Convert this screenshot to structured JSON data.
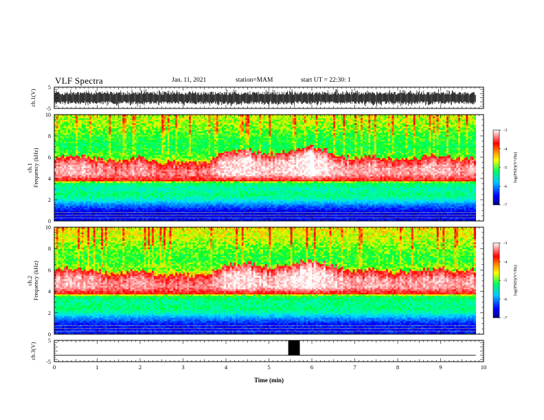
{
  "header": {
    "title": "VLF Spectra",
    "date": "Jan. 11, 2021",
    "station": "station=MAM",
    "start_ut": "start UT =  22:30: 1"
  },
  "chart_data": [
    {
      "type": "line",
      "panel": "ch1-waveform",
      "ylabel": "ch.1(V)",
      "ylim": [
        -5,
        5
      ],
      "yticks": [
        "5",
        "-5"
      ],
      "xlim": [
        0,
        10
      ],
      "description_series": "dense broadband waveform spanning approx -3 to +3 V across full time range"
    },
    {
      "type": "heatmap",
      "panel": "ch1-spectrogram",
      "ylabel": "ch.1\nFrequency (kHz)",
      "ylabel_line1": "ch.1",
      "ylabel_line2": "Frequency (kHz)",
      "ylim": [
        0,
        10
      ],
      "yticks": [
        "0",
        "2",
        "4",
        "6",
        "8",
        "10"
      ],
      "xlim": [
        0,
        10
      ],
      "data_end_min": 9.82,
      "colorbar": {
        "label": "log(PSD)(V²/Hz)",
        "range": [
          -7,
          -3
        ],
        "ticks": [
          "-3",
          "-4",
          "-5",
          "-6",
          "-7"
        ]
      },
      "band_profile_khz_logpsd": [
        [
          0.0,
          -6.4
        ],
        [
          0.5,
          -6.6
        ],
        [
          1.0,
          -6.5
        ],
        [
          1.5,
          -6.0
        ],
        [
          2.0,
          -5.3
        ],
        [
          2.5,
          -5.0
        ],
        [
          3.0,
          -5.2
        ],
        [
          3.5,
          -5.0
        ],
        [
          4.0,
          -3.9
        ],
        [
          4.5,
          -3.8
        ],
        [
          5.0,
          -4.0
        ],
        [
          5.5,
          -4.4
        ],
        [
          6.0,
          -4.7
        ],
        [
          7.0,
          -4.9
        ],
        [
          8.0,
          -4.8
        ],
        [
          9.0,
          -4.6
        ],
        [
          10.0,
          -4.5
        ]
      ],
      "peak_upper_khz_by_min": [
        [
          0.0,
          6.0
        ],
        [
          0.5,
          6.3
        ],
        [
          1.0,
          5.8
        ],
        [
          1.5,
          5.7
        ],
        [
          2.0,
          6.0
        ],
        [
          2.5,
          5.5
        ],
        [
          3.0,
          5.6
        ],
        [
          3.5,
          5.4
        ],
        [
          4.0,
          6.5
        ],
        [
          4.5,
          6.8
        ],
        [
          5.0,
          6.2
        ],
        [
          5.5,
          6.6
        ],
        [
          6.0,
          7.0
        ],
        [
          6.5,
          6.4
        ],
        [
          7.0,
          5.9
        ],
        [
          7.5,
          6.1
        ],
        [
          8.0,
          5.8
        ],
        [
          8.5,
          6.0
        ],
        [
          9.0,
          6.2
        ],
        [
          9.5,
          5.9
        ],
        [
          9.8,
          6.0
        ]
      ]
    },
    {
      "type": "heatmap",
      "panel": "ch2-spectrogram",
      "ylabel_line1": "ch.2",
      "ylabel_line2": "Frequency (kHz)",
      "ylim": [
        0,
        10
      ],
      "yticks": [
        "0",
        "2",
        "4",
        "6",
        "8",
        "10"
      ],
      "xlim": [
        0,
        10
      ],
      "data_end_min": 9.82,
      "colorbar": {
        "label": "log(PSD)(V²/Hz)",
        "range": [
          -7,
          -3
        ],
        "ticks": [
          "-3",
          "-4",
          "-5",
          "-6",
          "-7"
        ]
      },
      "band_profile_khz_logpsd": [
        [
          0.0,
          -6.3
        ],
        [
          0.5,
          -6.5
        ],
        [
          1.0,
          -6.4
        ],
        [
          1.5,
          -5.9
        ],
        [
          2.0,
          -5.2
        ],
        [
          2.5,
          -5.0
        ],
        [
          3.0,
          -5.1
        ],
        [
          3.5,
          -4.9
        ],
        [
          4.0,
          -3.8
        ],
        [
          4.5,
          -3.7
        ],
        [
          5.0,
          -3.9
        ],
        [
          5.5,
          -4.3
        ],
        [
          6.0,
          -4.6
        ],
        [
          7.0,
          -4.8
        ],
        [
          8.0,
          -4.7
        ],
        [
          9.0,
          -4.5
        ],
        [
          10.0,
          -4.4
        ]
      ],
      "peak_upper_khz_by_min": [
        [
          0.0,
          6.0
        ],
        [
          0.5,
          6.2
        ],
        [
          1.0,
          5.8
        ],
        [
          1.5,
          5.7
        ],
        [
          2.0,
          6.0
        ],
        [
          2.5,
          5.6
        ],
        [
          3.0,
          5.6
        ],
        [
          3.5,
          5.5
        ],
        [
          4.0,
          6.5
        ],
        [
          4.5,
          6.8
        ],
        [
          5.0,
          6.2
        ],
        [
          5.5,
          6.6
        ],
        [
          6.0,
          7.0
        ],
        [
          6.5,
          6.4
        ],
        [
          7.0,
          5.9
        ],
        [
          7.5,
          6.1
        ],
        [
          8.0,
          5.8
        ],
        [
          8.5,
          6.0
        ],
        [
          9.0,
          6.2
        ],
        [
          9.5,
          5.9
        ],
        [
          9.8,
          6.0
        ]
      ]
    },
    {
      "type": "line",
      "panel": "ch3-signal",
      "ylabel": "ch.3(V)",
      "ylim": [
        -5,
        5
      ],
      "yticks": [
        "5",
        "-5"
      ],
      "xlim": [
        0,
        10
      ],
      "xlabel": "Time (min)",
      "xticks": [
        "0",
        "1",
        "2",
        "3",
        "4",
        "5",
        "6",
        "7",
        "8",
        "9",
        "10"
      ],
      "baseline_v": -2,
      "pulse": {
        "x_start_min": 5.45,
        "x_end_min": 5.72,
        "y_top_v": 5,
        "y_bottom_v": -2
      }
    }
  ]
}
